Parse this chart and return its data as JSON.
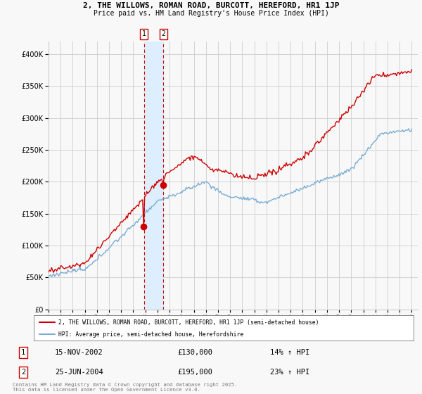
{
  "title1": "2, THE WILLOWS, ROMAN ROAD, BURCOTT, HEREFORD, HR1 1JP",
  "title2": "Price paid vs. HM Land Registry's House Price Index (HPI)",
  "legend_line1": "2, THE WILLOWS, ROMAN ROAD, BURCOTT, HEREFORD, HR1 1JP (semi-detached house)",
  "legend_line2": "HPI: Average price, semi-detached house, Herefordshire",
  "sale1_date": "15-NOV-2002",
  "sale1_price": "£130,000",
  "sale1_hpi": "14% ↑ HPI",
  "sale2_date": "25-JUN-2004",
  "sale2_price": "£195,000",
  "sale2_hpi": "23% ↑ HPI",
  "copyright": "Contains HM Land Registry data © Crown copyright and database right 2025.\nThis data is licensed under the Open Government Licence v3.0.",
  "sale1_year": 2002.88,
  "sale2_year": 2004.48,
  "red_color": "#cc0000",
  "blue_color": "#7aadd4",
  "shade_color": "#ddeeff",
  "vline_color": "#cc0000",
  "background_color": "#f8f8f8",
  "grid_color": "#cccccc",
  "ylim_max": 420000,
  "xlim_start": 1995,
  "xlim_end": 2025.5,
  "y_ticks": [
    0,
    50000,
    100000,
    150000,
    200000,
    250000,
    300000,
    350000,
    400000
  ]
}
